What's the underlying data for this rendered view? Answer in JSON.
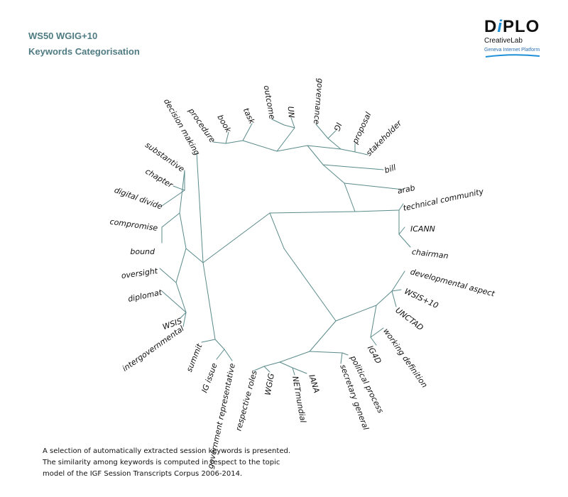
{
  "header": {
    "title_line1": "WS50 WGIG+10",
    "title_line2": "Keywords Categorisation"
  },
  "logo": {
    "wordmark": "DiPLO",
    "subtitle": "CreativeLab",
    "tagline": "Geneva Internet Platform"
  },
  "colors": {
    "title": "#4f7b82",
    "branch": "#5a8a8a",
    "logo_accent": "#1e8fd6"
  },
  "diagram": {
    "type": "radial dendrogram",
    "leaves": [
      "decision making",
      "procedure",
      "book",
      "task",
      "outcome",
      "UN",
      "governance",
      "IG",
      "proposal",
      "stakeholder",
      "bill",
      "arab",
      "technical community",
      "ICANN",
      "chairman",
      "developmental aspect",
      "WSIS+10",
      "UNCTAD",
      "working definition",
      "IG4D",
      "political process",
      "secretary general",
      "IANA",
      "NETmundial",
      "WGIG",
      "respective roles",
      "government representative",
      "IG issue",
      "summit",
      "intergovernmental",
      "WSIS",
      "diplomat",
      "oversight",
      "bound",
      "compromise",
      "digital divide",
      "chapter",
      "substantive"
    ]
  },
  "caption": {
    "line1": "A selection of automatically extracted session keywords is presented.",
    "line2": "The similarity among keywords is computed in respect to the topic",
    "line3": "model of the IGF Session Transcripts Corpus 2006-2014."
  }
}
